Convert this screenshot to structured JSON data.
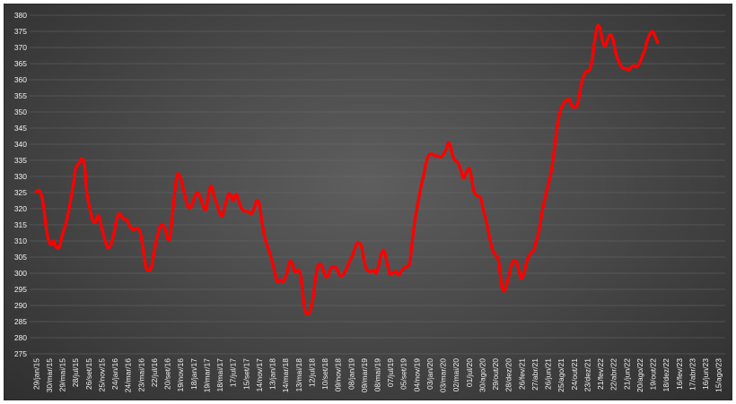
{
  "chart_data": {
    "type": "line",
    "title": "",
    "xlabel": "",
    "ylabel": "",
    "ylim": [
      275,
      380
    ],
    "yticks": [
      275,
      280,
      285,
      290,
      295,
      300,
      305,
      310,
      315,
      320,
      325,
      330,
      335,
      340,
      345,
      350,
      355,
      360,
      365,
      370,
      375,
      380
    ],
    "grid": "horizontal",
    "legend": "none",
    "colors": {
      "line": "#ff0000",
      "grid": "#6a6a6a",
      "text": "#f2f2f2",
      "background": "#444444"
    },
    "x_ticks": [
      "29/jan/15",
      "30/mar/15",
      "29/mai/15",
      "28/jul/15",
      "26/set/15",
      "25/nov/15",
      "24/jan/16",
      "24/mar/16",
      "23/mai/16",
      "22/jul/16",
      "20/set/16",
      "19/nov/16",
      "18/jan/17",
      "19/mar/17",
      "18/mai/17",
      "17/jul/17",
      "15/set/17",
      "14/nov/17",
      "13/jan/18",
      "14/mar/18",
      "13/mai/18",
      "12/jul/18",
      "10/set/18",
      "09/nov/18",
      "08/jan/19",
      "09/mar/19",
      "08/mai/19",
      "07/jul/19",
      "05/set/19",
      "04/nov/19",
      "03/jan/20",
      "03/mar/20",
      "02/mai/20",
      "01/jul/20",
      "30/ago/20",
      "29/out/20",
      "28/dez/20",
      "26/fev/21",
      "27/abr/21",
      "26/jun/21",
      "25/ago/21",
      "24/out/21",
      "23/dez/21",
      "21/fev/22",
      "22/abr/22",
      "21/jun/22",
      "20/ago/22",
      "19/out/22",
      "18/dez/22",
      "16/fev/23",
      "17/abr/23",
      "16/jun/23",
      "15/ago/23"
    ],
    "series": [
      {
        "values": [
          [
            0,
            325.2
          ],
          [
            0.25,
            325.5
          ],
          [
            0.5,
            322.5
          ],
          [
            0.8,
            313
          ],
          [
            1.0,
            309.5
          ],
          [
            1.2,
            309
          ],
          [
            1.35,
            310
          ],
          [
            1.5,
            308.2
          ],
          [
            1.75,
            308
          ],
          [
            2.0,
            312
          ],
          [
            2.3,
            316
          ],
          [
            2.6,
            322
          ],
          [
            2.85,
            328
          ],
          [
            3.0,
            332.5
          ],
          [
            3.25,
            334
          ],
          [
            3.5,
            335.5
          ],
          [
            3.7,
            333
          ],
          [
            3.85,
            325
          ],
          [
            4.1,
            320
          ],
          [
            4.3,
            316.5
          ],
          [
            4.5,
            315.8
          ],
          [
            4.75,
            317.8
          ],
          [
            5.0,
            314
          ],
          [
            5.25,
            310
          ],
          [
            5.45,
            308
          ],
          [
            5.65,
            308.5
          ],
          [
            5.9,
            312
          ],
          [
            6.15,
            317
          ],
          [
            6.35,
            318.5
          ],
          [
            6.6,
            317
          ],
          [
            6.9,
            316.5
          ],
          [
            7.15,
            314.5
          ],
          [
            7.4,
            313.5
          ],
          [
            7.65,
            314
          ],
          [
            7.9,
            313
          ],
          [
            8.1,
            309
          ],
          [
            8.35,
            302
          ],
          [
            8.55,
            301
          ],
          [
            8.75,
            301.5
          ],
          [
            9.0,
            307
          ],
          [
            9.2,
            311
          ],
          [
            9.5,
            315
          ],
          [
            9.8,
            314
          ],
          [
            10.0,
            311
          ],
          [
            10.2,
            311.5
          ],
          [
            10.55,
            325
          ],
          [
            10.75,
            330.5
          ],
          [
            10.95,
            330
          ],
          [
            11.15,
            327
          ],
          [
            11.4,
            323
          ],
          [
            11.6,
            320.5
          ],
          [
            11.85,
            321
          ],
          [
            12.1,
            324
          ],
          [
            12.3,
            325
          ],
          [
            12.5,
            323.5
          ],
          [
            12.75,
            320.5
          ],
          [
            12.95,
            320
          ],
          [
            13.15,
            325
          ],
          [
            13.35,
            327
          ],
          [
            13.55,
            324
          ],
          [
            13.8,
            321
          ],
          [
            14.0,
            318.5
          ],
          [
            14.2,
            318
          ],
          [
            14.45,
            322
          ],
          [
            14.65,
            324.5
          ],
          [
            14.85,
            324
          ],
          [
            15.0,
            322.5
          ],
          [
            15.25,
            324.5
          ],
          [
            15.5,
            321.5
          ],
          [
            15.75,
            319.5
          ],
          [
            16.0,
            319.3
          ],
          [
            16.2,
            319
          ],
          [
            16.4,
            318.5
          ],
          [
            16.6,
            320
          ],
          [
            16.8,
            322.5
          ],
          [
            17.0,
            321.5
          ],
          [
            17.2,
            316
          ],
          [
            17.45,
            310.5
          ],
          [
            17.7,
            307.5
          ],
          [
            17.95,
            304
          ],
          [
            18.15,
            301
          ],
          [
            18.35,
            297.5
          ],
          [
            18.6,
            298
          ],
          [
            18.85,
            297.5
          ],
          [
            19.1,
            300
          ],
          [
            19.3,
            303.5
          ],
          [
            19.5,
            303
          ],
          [
            19.7,
            300.5
          ],
          [
            20.0,
            301
          ],
          [
            20.2,
            298
          ],
          [
            20.45,
            289
          ],
          [
            20.65,
            287.5
          ],
          [
            20.85,
            288
          ],
          [
            21.1,
            292.5
          ],
          [
            21.3,
            299
          ],
          [
            21.5,
            302.5
          ],
          [
            21.75,
            302.3
          ],
          [
            22.0,
            299.5
          ],
          [
            22.2,
            299
          ],
          [
            22.45,
            301.5
          ],
          [
            22.65,
            302
          ],
          [
            22.9,
            301.5
          ],
          [
            23.1,
            299.5
          ],
          [
            23.35,
            299.5
          ],
          [
            23.6,
            301
          ],
          [
            23.85,
            303.5
          ],
          [
            24.1,
            305.5
          ],
          [
            24.35,
            308.5
          ],
          [
            24.55,
            309.5
          ],
          [
            24.8,
            308
          ],
          [
            25.0,
            303.5
          ],
          [
            25.2,
            301
          ],
          [
            25.45,
            300.5
          ],
          [
            25.7,
            301
          ],
          [
            25.9,
            300
          ],
          [
            26.1,
            302.5
          ],
          [
            26.3,
            306
          ],
          [
            26.5,
            307
          ],
          [
            26.75,
            303
          ],
          [
            26.95,
            299.8
          ],
          [
            27.15,
            300
          ],
          [
            27.4,
            300.5
          ],
          [
            27.6,
            299.5
          ],
          [
            27.8,
            300.5
          ],
          [
            28.0,
            301.5
          ],
          [
            28.2,
            302
          ],
          [
            28.45,
            303
          ],
          [
            28.6,
            308
          ],
          [
            28.75,
            313
          ],
          [
            28.9,
            317.5
          ],
          [
            29.1,
            322
          ],
          [
            29.3,
            326.5
          ],
          [
            29.5,
            330
          ],
          [
            29.7,
            334
          ],
          [
            29.9,
            336.5
          ],
          [
            30.1,
            337
          ],
          [
            30.35,
            336.5
          ],
          [
            30.6,
            336.3
          ],
          [
            30.85,
            336
          ],
          [
            31.05,
            337
          ],
          [
            31.25,
            338.5
          ],
          [
            31.4,
            340.5
          ],
          [
            31.55,
            339.5
          ],
          [
            31.7,
            337
          ],
          [
            31.9,
            335
          ],
          [
            32.1,
            334.5
          ],
          [
            32.35,
            332
          ],
          [
            32.55,
            329.5
          ],
          [
            32.8,
            331.5
          ],
          [
            33.0,
            332.5
          ],
          [
            33.15,
            330
          ],
          [
            33.35,
            325.5
          ],
          [
            33.6,
            324
          ],
          [
            33.85,
            323.5
          ],
          [
            34.05,
            320
          ],
          [
            34.3,
            316
          ],
          [
            34.5,
            312
          ],
          [
            34.75,
            307.5
          ],
          [
            35.0,
            305.5
          ],
          [
            35.2,
            304.5
          ],
          [
            35.35,
            300
          ],
          [
            35.5,
            295.5
          ],
          [
            35.65,
            294.5
          ],
          [
            35.85,
            296.5
          ],
          [
            36.05,
            300
          ],
          [
            36.25,
            303
          ],
          [
            36.45,
            304
          ],
          [
            36.65,
            303
          ],
          [
            36.85,
            299.5
          ],
          [
            37.0,
            298.5
          ],
          [
            37.2,
            300.5
          ],
          [
            37.4,
            304
          ],
          [
            37.65,
            306
          ],
          [
            37.9,
            307
          ],
          [
            38.1,
            310
          ],
          [
            38.3,
            313
          ],
          [
            38.55,
            319
          ],
          [
            38.8,
            324
          ],
          [
            39.05,
            328
          ],
          [
            39.3,
            333
          ],
          [
            39.5,
            339
          ],
          [
            39.7,
            345.5
          ],
          [
            39.9,
            350
          ],
          [
            40.15,
            352.5
          ],
          [
            40.4,
            353.5
          ],
          [
            40.6,
            354
          ],
          [
            40.8,
            352
          ],
          [
            41.05,
            351.5
          ],
          [
            41.25,
            352.5
          ],
          [
            41.5,
            358
          ],
          [
            41.7,
            361
          ],
          [
            41.9,
            362.5
          ],
          [
            42.15,
            363
          ],
          [
            42.35,
            366
          ],
          [
            42.55,
            372
          ],
          [
            42.75,
            376.5
          ],
          [
            42.95,
            376
          ],
          [
            43.15,
            372
          ],
          [
            43.35,
            370.5
          ],
          [
            43.55,
            372.5
          ],
          [
            43.75,
            374
          ],
          [
            43.95,
            372.5
          ],
          [
            44.15,
            368.5
          ],
          [
            44.35,
            366
          ],
          [
            44.55,
            364.3
          ],
          [
            44.75,
            363.5
          ],
          [
            44.95,
            363.5
          ],
          [
            45.15,
            363
          ],
          [
            45.35,
            364
          ],
          [
            45.55,
            364.3
          ],
          [
            45.75,
            364
          ],
          [
            45.95,
            365
          ],
          [
            46.15,
            367
          ],
          [
            46.35,
            369
          ],
          [
            46.55,
            372
          ],
          [
            46.75,
            374
          ],
          [
            46.95,
            375
          ],
          [
            47.15,
            373.5
          ],
          [
            47.35,
            371.5
          ]
        ]
      }
    ]
  }
}
